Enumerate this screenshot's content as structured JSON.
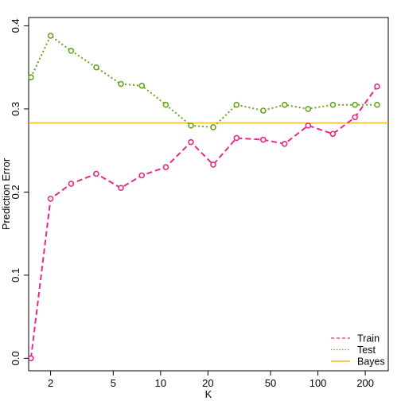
{
  "chart_data": {
    "type": "line",
    "title": "",
    "xlabel": "K",
    "ylabel": "Prediction Error",
    "x_scale": "log",
    "xlim": [
      1.45,
      280
    ],
    "ylim": [
      -0.015,
      0.41
    ],
    "x_ticks": [
      2,
      5,
      10,
      20,
      50,
      100,
      200
    ],
    "x_tick_labels": [
      "2",
      "5",
      "10",
      "20",
      "50",
      "100",
      "200"
    ],
    "y_ticks": [
      0.0,
      0.1,
      0.2,
      0.3,
      0.4
    ],
    "y_tick_labels": [
      "0.0",
      "0.1",
      "0.2",
      "0.3",
      "0.4"
    ],
    "grid": false,
    "legend_position": "bottom-right",
    "x": [
      1.5,
      2,
      2.7,
      3.9,
      5.6,
      7.6,
      10.8,
      15.6,
      21.6,
      30.4,
      44.9,
      61.4,
      86.7,
      124.5,
      172.1,
      237.7
    ],
    "series": [
      {
        "name": "Train",
        "color": "#e7298a",
        "line_style": "dashed",
        "values": [
          0.0,
          0.192,
          0.21,
          0.222,
          0.205,
          0.22,
          0.23,
          0.26,
          0.233,
          0.265,
          0.263,
          0.258,
          0.28,
          0.27,
          0.29,
          0.327
        ]
      },
      {
        "name": "Test",
        "color": "#66a61e",
        "line_style": "dotted",
        "values": [
          0.338,
          0.388,
          0.37,
          0.35,
          0.33,
          0.328,
          0.305,
          0.28,
          0.278,
          0.305,
          0.298,
          0.305,
          0.3,
          0.305,
          0.305,
          0.305
        ]
      }
    ],
    "reference_lines": [
      {
        "name": "Bayes",
        "color": "#e6ab02",
        "y": 0.283
      }
    ]
  }
}
